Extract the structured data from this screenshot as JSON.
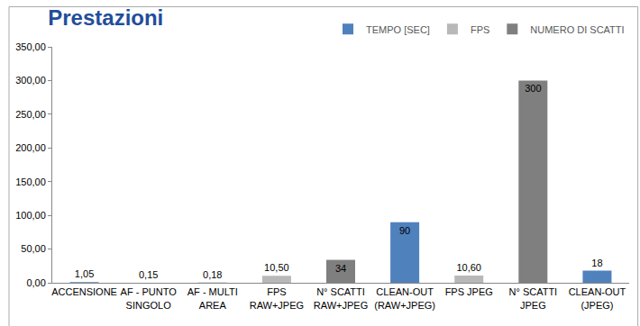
{
  "chart_data": {
    "type": "bar",
    "title": "Prestazioni",
    "categories": [
      "ACCENSIONE",
      "AF - PUNTO SINGOLO",
      "AF - MULTI AREA",
      "FPS RAW+JPEG",
      "N° SCATTI RAW+JPEG",
      "CLEAN-OUT (RAW+JPEG)",
      "FPS JPEG",
      "N° SCATTI JPEG",
      "CLEAN-OUT (JPEG)"
    ],
    "series": [
      {
        "name": "TEMPO [SEC]",
        "color": "#4f81bd",
        "values": [
          1.05,
          0.15,
          0.18,
          null,
          null,
          90,
          null,
          null,
          18
        ],
        "value_labels": [
          "1,05",
          "0,15",
          "0,18",
          null,
          null,
          "90",
          null,
          null,
          "18"
        ]
      },
      {
        "name": "FPS",
        "color": "#b8b8b8",
        "values": [
          null,
          null,
          null,
          10.5,
          null,
          null,
          10.6,
          null,
          null
        ],
        "value_labels": [
          null,
          null,
          null,
          "10,50",
          null,
          null,
          "10,60",
          null,
          null
        ]
      },
      {
        "name": "NUMERO DI SCATTI",
        "color": "#7f7f7f",
        "values": [
          null,
          null,
          null,
          null,
          34,
          null,
          null,
          300,
          null
        ],
        "value_labels": [
          null,
          null,
          null,
          null,
          "34",
          null,
          null,
          "300",
          null
        ]
      }
    ],
    "ylim": [
      0,
      350
    ],
    "yticks": [
      {
        "value": 0,
        "label": "0,00"
      },
      {
        "value": 50,
        "label": "50,00"
      },
      {
        "value": 100,
        "label": "100,00"
      },
      {
        "value": 150,
        "label": "150,00"
      },
      {
        "value": 200,
        "label": "200,00"
      },
      {
        "value": 250,
        "label": "250,00"
      },
      {
        "value": 300,
        "label": "300,00"
      },
      {
        "value": 350,
        "label": "350,00"
      }
    ],
    "grid": false,
    "legend": "top right",
    "data_labels": true
  }
}
